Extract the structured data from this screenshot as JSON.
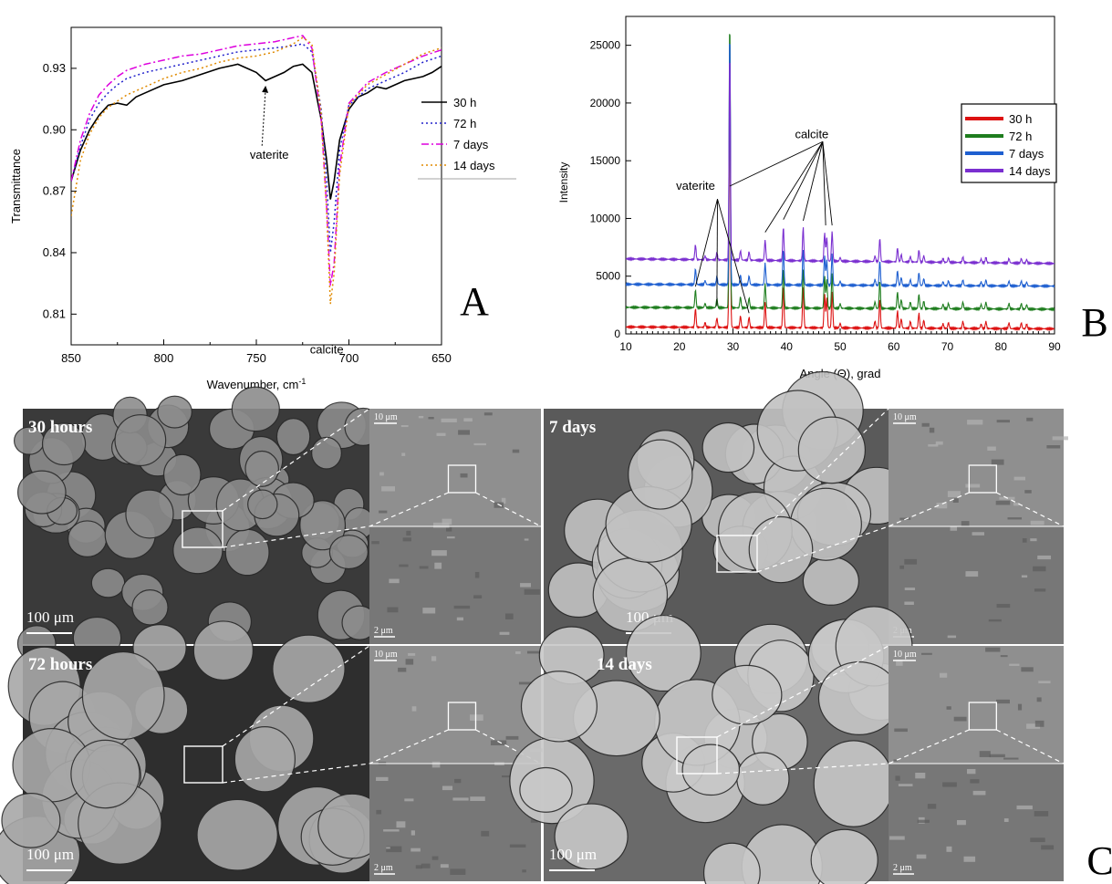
{
  "chart_data": [
    {
      "type": "line",
      "panel_label": "A",
      "xlabel": "Wavenumber, cm",
      "xlabel_sup": "-1",
      "ylabel": "Transmittance",
      "xlim": [
        850,
        650
      ],
      "ylim": [
        0.795,
        0.95
      ],
      "x_reversed": true,
      "xticks": [
        850,
        800,
        750,
        700,
        650
      ],
      "yticks": [
        0.81,
        0.84,
        0.87,
        0.9,
        0.93
      ],
      "ytick_labels": [
        "0.81",
        "0.84",
        "0.87",
        "0.90",
        "0.93"
      ],
      "legend_position": "right",
      "series": [
        {
          "name": "30 h",
          "color": "#000000",
          "style": "solid",
          "x": [
            850,
            845,
            840,
            835,
            830,
            825,
            820,
            815,
            810,
            800,
            790,
            780,
            770,
            760,
            750,
            745,
            740,
            735,
            730,
            725,
            720,
            715,
            712,
            710,
            708,
            705,
            700,
            695,
            690,
            685,
            680,
            675,
            670,
            665,
            660,
            655,
            650
          ],
          "y": [
            0.875,
            0.89,
            0.9,
            0.907,
            0.912,
            0.913,
            0.912,
            0.916,
            0.918,
            0.922,
            0.924,
            0.927,
            0.93,
            0.932,
            0.928,
            0.924,
            0.926,
            0.928,
            0.931,
            0.932,
            0.928,
            0.905,
            0.885,
            0.866,
            0.875,
            0.895,
            0.91,
            0.916,
            0.918,
            0.921,
            0.92,
            0.922,
            0.924,
            0.925,
            0.926,
            0.928,
            0.931
          ]
        },
        {
          "name": "72 h",
          "color": "#2222cc",
          "style": "dotted",
          "x": [
            850,
            845,
            840,
            835,
            830,
            825,
            820,
            810,
            800,
            790,
            780,
            770,
            760,
            750,
            740,
            730,
            725,
            720,
            715,
            712,
            710,
            708,
            705,
            700,
            690,
            680,
            670,
            660,
            650
          ],
          "y": [
            0.875,
            0.892,
            0.905,
            0.913,
            0.918,
            0.922,
            0.925,
            0.928,
            0.93,
            0.932,
            0.934,
            0.936,
            0.938,
            0.939,
            0.94,
            0.941,
            0.942,
            0.938,
            0.91,
            0.875,
            0.84,
            0.855,
            0.89,
            0.912,
            0.92,
            0.924,
            0.928,
            0.933,
            0.936
          ]
        },
        {
          "name": "7 days",
          "color": "#dd00dd",
          "style": "dashdot",
          "x": [
            850,
            845,
            840,
            835,
            830,
            825,
            820,
            810,
            800,
            790,
            780,
            770,
            760,
            750,
            740,
            730,
            725,
            720,
            715,
            712,
            710,
            708,
            705,
            700,
            690,
            680,
            670,
            660,
            650
          ],
          "y": [
            0.875,
            0.895,
            0.908,
            0.917,
            0.922,
            0.926,
            0.929,
            0.932,
            0.934,
            0.936,
            0.937,
            0.939,
            0.941,
            0.942,
            0.943,
            0.945,
            0.946,
            0.94,
            0.905,
            0.862,
            0.824,
            0.835,
            0.882,
            0.913,
            0.923,
            0.928,
            0.932,
            0.936,
            0.939
          ]
        },
        {
          "name": "14 days",
          "color": "#e08a00",
          "style": "dotted",
          "x": [
            850,
            845,
            840,
            835,
            830,
            825,
            820,
            810,
            800,
            790,
            780,
            770,
            760,
            750,
            740,
            730,
            725,
            720,
            715,
            712,
            710,
            708,
            705,
            700,
            690,
            680,
            670,
            660,
            650
          ],
          "y": [
            0.858,
            0.885,
            0.898,
            0.906,
            0.911,
            0.914,
            0.917,
            0.921,
            0.925,
            0.928,
            0.93,
            0.933,
            0.935,
            0.936,
            0.938,
            0.942,
            0.945,
            0.942,
            0.908,
            0.86,
            0.815,
            0.83,
            0.878,
            0.912,
            0.922,
            0.927,
            0.932,
            0.937,
            0.94
          ]
        }
      ],
      "annotations": [
        {
          "text": "vaterite",
          "x": 743,
          "y": 0.902,
          "arrow_to": [
            745,
            0.922
          ]
        },
        {
          "text": "calcite",
          "x": 711,
          "y": 0.806
        }
      ]
    },
    {
      "type": "line",
      "panel_label": "B",
      "xlabel": "Angle (Θ), grad",
      "ylabel": "Intensity",
      "xlim": [
        10,
        90
      ],
      "ylim": [
        0,
        27500
      ],
      "xticks": [
        10,
        20,
        30,
        40,
        50,
        60,
        70,
        80,
        90
      ],
      "yticks": [
        0,
        5000,
        10000,
        15000,
        20000,
        25000
      ],
      "legend_position": "right",
      "peaks": [
        {
          "pos": 23.0,
          "h": 1600
        },
        {
          "pos": 24.8,
          "h": 400
        },
        {
          "pos": 27.0,
          "h": 800
        },
        {
          "pos": 29.4,
          "h": 22000
        },
        {
          "pos": 31.4,
          "h": 1000
        },
        {
          "pos": 33.0,
          "h": 900
        },
        {
          "pos": 36.0,
          "h": 2200
        },
        {
          "pos": 39.4,
          "h": 3600
        },
        {
          "pos": 43.1,
          "h": 3600
        },
        {
          "pos": 47.1,
          "h": 3000
        },
        {
          "pos": 47.5,
          "h": 2600
        },
        {
          "pos": 48.5,
          "h": 3200
        },
        {
          "pos": 50.0,
          "h": 400
        },
        {
          "pos": 56.5,
          "h": 600
        },
        {
          "pos": 57.4,
          "h": 2500
        },
        {
          "pos": 60.7,
          "h": 1500
        },
        {
          "pos": 61.4,
          "h": 800
        },
        {
          "pos": 63.1,
          "h": 600
        },
        {
          "pos": 64.7,
          "h": 1300
        },
        {
          "pos": 65.6,
          "h": 700
        },
        {
          "pos": 69.2,
          "h": 400
        },
        {
          "pos": 70.2,
          "h": 500
        },
        {
          "pos": 72.9,
          "h": 600
        },
        {
          "pos": 76.3,
          "h": 400
        },
        {
          "pos": 77.2,
          "h": 600
        },
        {
          "pos": 81.5,
          "h": 500
        },
        {
          "pos": 83.8,
          "h": 500
        },
        {
          "pos": 84.8,
          "h": 400
        }
      ],
      "series": [
        {
          "name": "30 h",
          "color": "#dd1111",
          "baseline": 600
        },
        {
          "name": "72 h",
          "color": "#1e7d1e",
          "baseline": 2300
        },
        {
          "name": "7 days",
          "color": "#1e5fd0",
          "baseline": 4300
        },
        {
          "name": "14 days",
          "color": "#7a2fd0",
          "baseline": 6500
        }
      ],
      "annotations": [
        {
          "text": "vaterite",
          "x": 22,
          "y": 13100
        },
        {
          "text": "calcite",
          "x": 43,
          "y": 17600
        }
      ]
    }
  ],
  "micrographs": {
    "panel_label": "C",
    "panels": [
      {
        "label": "30 hours",
        "scale_main": "100 μm",
        "scale_top": "10 μm",
        "scale_bottom": "2 μm"
      },
      {
        "label": "7 days",
        "scale_main": "100 μm",
        "scale_top": "10 μm",
        "scale_bottom": "2 μm"
      },
      {
        "label": "72 hours",
        "scale_main": "100 μm",
        "scale_top": "10 μm",
        "scale_bottom": "2 μm"
      },
      {
        "label": "14 days",
        "scale_main": "100 μm",
        "scale_top": "10 μm",
        "scale_bottom": "2 μm"
      }
    ]
  }
}
